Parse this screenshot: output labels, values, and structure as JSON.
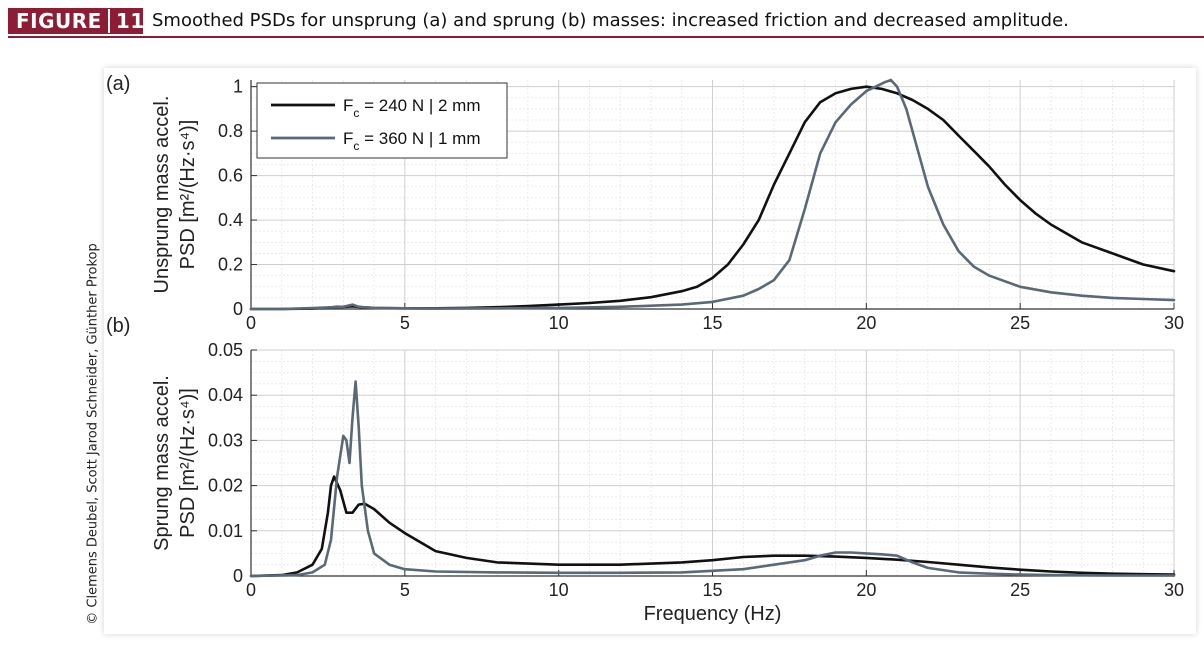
{
  "header": {
    "figure_word": "FIGURE",
    "figure_number": "11",
    "caption": "Smoothed PSDs for unsprung (a) and sprung (b) masses: increased friction and decreased amplitude.",
    "badge_color": "#8d1d35"
  },
  "credit": "© Clemens Deubel, Scott Jarod Schneider, Günther Prokop",
  "chart_data": [
    {
      "type": "line",
      "panel_label": "(a)",
      "ylabel": [
        "Unsprung  mass accel.",
        "PSD [m²/(Hz·s⁴)]"
      ],
      "xlabel": "",
      "xlim": [
        0,
        30
      ],
      "ylim": [
        0,
        1.03
      ],
      "x_ticks": [
        0,
        5,
        10,
        15,
        20,
        25,
        30
      ],
      "y_ticks": [
        0,
        0.2,
        0.4,
        0.6,
        0.8,
        1
      ],
      "y_tick_labels": [
        "0",
        "0.2",
        "0.4",
        "0.6",
        "0.8",
        "1"
      ],
      "grid": true,
      "legend_position": "top-left",
      "series": [
        {
          "name": "F_c = 240 N | 2 mm",
          "legend_label": {
            "prefix": "F",
            "sub": "c",
            "suffix": " = 240 N | 2 mm"
          },
          "color": "#111111",
          "x": [
            0,
            1,
            2,
            2.5,
            2.8,
            3,
            3.3,
            3.6,
            4,
            5,
            6,
            7,
            8,
            9,
            10,
            11,
            12,
            13,
            14,
            14.5,
            15,
            15.5,
            16,
            16.5,
            17,
            17.5,
            18,
            18.5,
            19,
            19.5,
            20,
            20.5,
            21,
            21.5,
            22,
            22.5,
            23,
            23.5,
            24,
            24.5,
            25,
            25.5,
            26,
            27,
            28,
            29,
            30
          ],
          "y": [
            0,
            0,
            0.002,
            0.006,
            0.01,
            0.009,
            0.012,
            0.008,
            0.005,
            0.003,
            0.003,
            0.005,
            0.008,
            0.013,
            0.02,
            0.027,
            0.037,
            0.053,
            0.08,
            0.1,
            0.14,
            0.2,
            0.29,
            0.4,
            0.56,
            0.7,
            0.84,
            0.93,
            0.97,
            0.99,
            1.0,
            0.99,
            0.97,
            0.94,
            0.9,
            0.85,
            0.78,
            0.71,
            0.64,
            0.56,
            0.49,
            0.43,
            0.38,
            0.3,
            0.25,
            0.2,
            0.17
          ]
        },
        {
          "name": "F_c = 360 N | 1 mm",
          "legend_label": {
            "prefix": "F",
            "sub": "c",
            "suffix": " = 360 N | 1 mm"
          },
          "color": "#5a6878",
          "x": [
            0,
            1,
            2,
            3,
            3.3,
            3.5,
            4,
            5,
            6,
            8,
            10,
            12,
            14,
            15,
            16,
            16.5,
            17,
            17.5,
            18,
            18.5,
            19,
            19.5,
            20,
            20.3,
            20.6,
            20.8,
            21,
            21.3,
            21.6,
            22,
            22.5,
            23,
            23.5,
            24,
            25,
            26,
            27,
            28,
            29,
            30
          ],
          "y": [
            0,
            0,
            0.004,
            0.01,
            0.02,
            0.01,
            0.004,
            0.003,
            0.002,
            0.003,
            0.005,
            0.01,
            0.02,
            0.032,
            0.06,
            0.09,
            0.13,
            0.22,
            0.45,
            0.7,
            0.84,
            0.92,
            0.98,
            1.0,
            1.02,
            1.03,
            1.0,
            0.9,
            0.75,
            0.55,
            0.38,
            0.26,
            0.19,
            0.15,
            0.1,
            0.075,
            0.06,
            0.05,
            0.045,
            0.04
          ]
        }
      ]
    },
    {
      "type": "line",
      "panel_label": "(b)",
      "ylabel": [
        "Sprung  mass accel.",
        "PSD [m²/(Hz·s⁴)]"
      ],
      "xlabel": "Frequency (Hz)",
      "xlim": [
        0,
        30
      ],
      "ylim": [
        0,
        0.05
      ],
      "x_ticks": [
        0,
        5,
        10,
        15,
        20,
        25,
        30
      ],
      "y_ticks": [
        0,
        0.01,
        0.02,
        0.03,
        0.04,
        0.05
      ],
      "y_tick_labels": [
        "0",
        "0.01",
        "0.02",
        "0.03",
        "0.04",
        "0.05"
      ],
      "grid": true,
      "series": [
        {
          "name": "F_c = 240 N | 2 mm",
          "color": "#111111",
          "x": [
            0,
            1,
            1.5,
            2,
            2.3,
            2.5,
            2.6,
            2.7,
            2.9,
            3.1,
            3.3,
            3.5,
            3.7,
            4,
            4.5,
            5,
            6,
            7,
            8,
            10,
            12,
            14,
            15,
            16,
            17,
            18,
            19,
            20,
            21,
            22,
            23,
            24,
            25,
            26,
            27,
            28,
            29,
            30
          ],
          "y": [
            0,
            0.0002,
            0.0008,
            0.0025,
            0.006,
            0.014,
            0.02,
            0.022,
            0.019,
            0.014,
            0.014,
            0.0158,
            0.016,
            0.0148,
            0.0118,
            0.0095,
            0.0055,
            0.004,
            0.003,
            0.0025,
            0.0025,
            0.003,
            0.0035,
            0.0042,
            0.0045,
            0.0045,
            0.0043,
            0.004,
            0.0036,
            0.0031,
            0.0025,
            0.0019,
            0.0014,
            0.001,
            0.0007,
            0.0005,
            0.0004,
            0.0003
          ]
        },
        {
          "name": "F_c = 360 N | 1 mm",
          "color": "#5a6878",
          "x": [
            0,
            1.5,
            2,
            2.4,
            2.6,
            2.8,
            3.0,
            3.1,
            3.2,
            3.3,
            3.4,
            3.5,
            3.6,
            3.8,
            4,
            4.5,
            5,
            6,
            8,
            10,
            12,
            14,
            16,
            17,
            18,
            18.5,
            19,
            19.5,
            20,
            20.5,
            21,
            21.5,
            22,
            23,
            24,
            25,
            26,
            28,
            30
          ],
          "y": [
            0,
            0.0002,
            0.0008,
            0.0025,
            0.008,
            0.022,
            0.031,
            0.03,
            0.025,
            0.035,
            0.043,
            0.033,
            0.02,
            0.01,
            0.005,
            0.0025,
            0.0015,
            0.001,
            0.0008,
            0.0007,
            0.0007,
            0.0008,
            0.0015,
            0.0025,
            0.0035,
            0.0045,
            0.0052,
            0.0052,
            0.005,
            0.0048,
            0.0045,
            0.003,
            0.0018,
            0.0008,
            0.0005,
            0.0003,
            0.0002,
            0.0001,
            0.0001
          ]
        }
      ]
    }
  ]
}
